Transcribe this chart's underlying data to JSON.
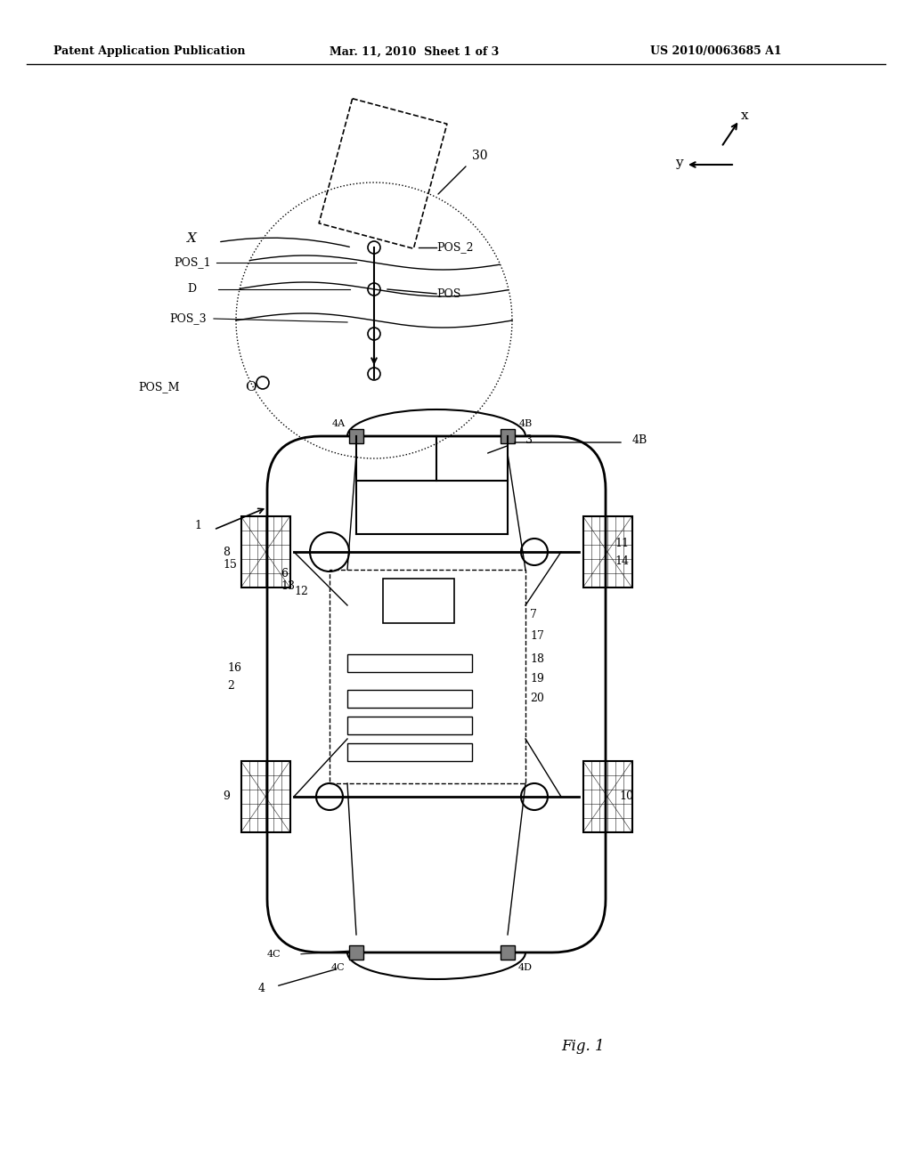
{
  "bg_color": "#ffffff",
  "header_left": "Patent Application Publication",
  "header_mid": "Mar. 11, 2010  Sheet 1 of 3",
  "header_right": "US 2010/0063685 A1",
  "fig_label": "Fig. 1",
  "title_fontsize": 10,
  "body_fontsize": 9
}
